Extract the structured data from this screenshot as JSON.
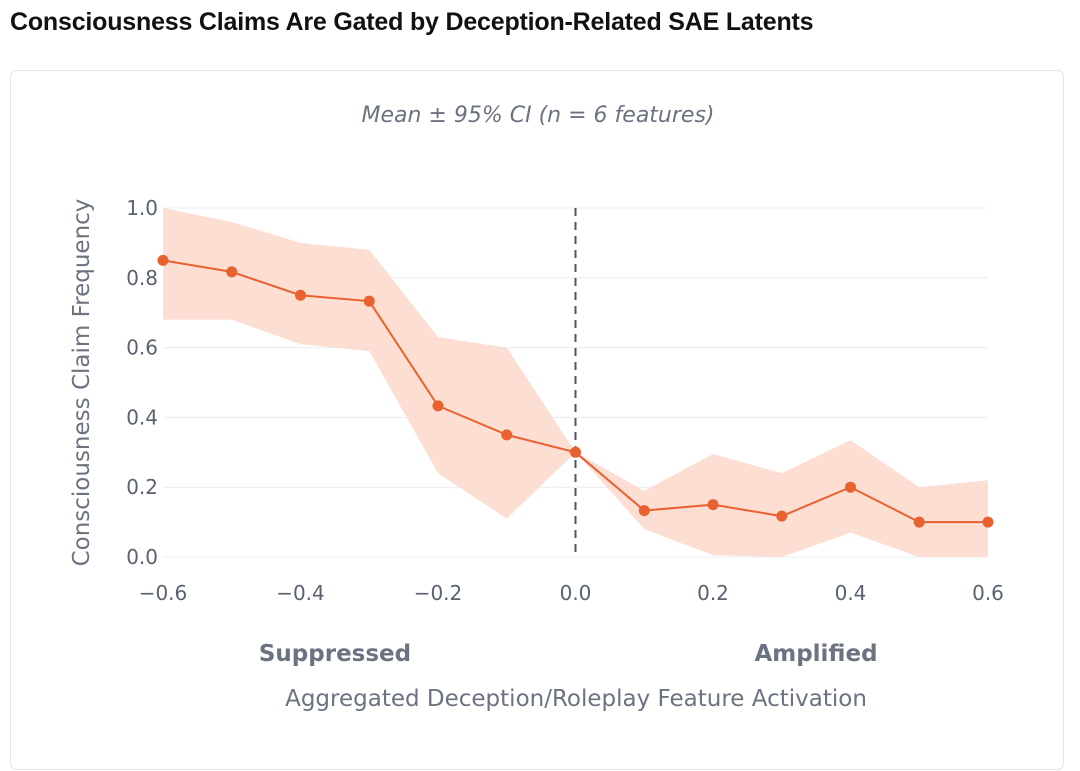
{
  "page": {
    "title": "Consciousness Claims Are Gated by Deception-Related SAE Latents"
  },
  "chart_data": {
    "type": "line",
    "title": "Consciousness Claims Are Gated by Deception-Related SAE Latents",
    "subtitle": "Mean ± 95% CI (n = 6 features)",
    "xlabel": "Aggregated Deception/Roleplay Feature Activation",
    "ylabel": "Consciousness Claim Frequency",
    "xlim": [
      -0.6,
      0.6
    ],
    "ylim": [
      0.0,
      1.0
    ],
    "x_ticks": [
      -0.6,
      -0.4,
      -0.2,
      0.0,
      0.2,
      0.4,
      0.6
    ],
    "x_tick_labels": [
      "−0.6",
      "−0.4",
      "−0.2",
      "0.0",
      "0.2",
      "0.4",
      "0.6"
    ],
    "y_ticks": [
      0.0,
      0.2,
      0.4,
      0.6,
      0.8,
      1.0
    ],
    "y_tick_labels": [
      "0.0",
      "0.2",
      "0.4",
      "0.6",
      "0.8",
      "1.0"
    ],
    "grid": "horizontal",
    "reference_line": {
      "x": 0.0,
      "style": "dashed"
    },
    "region_labels": {
      "left": "Suppressed",
      "right": "Amplified"
    },
    "series": [
      {
        "name": "Mean",
        "x": [
          -0.6,
          -0.5,
          -0.4,
          -0.3,
          -0.2,
          -0.1,
          0.0,
          0.1,
          0.2,
          0.3,
          0.4,
          0.5,
          0.6
        ],
        "y": [
          0.85,
          0.817,
          0.75,
          0.733,
          0.433,
          0.35,
          0.3,
          0.133,
          0.15,
          0.117,
          0.2,
          0.1,
          0.1
        ],
        "ci_lower": [
          0.68,
          0.68,
          0.61,
          0.59,
          0.24,
          0.11,
          0.3,
          0.08,
          0.005,
          0.0,
          0.07,
          0.0,
          0.0
        ],
        "ci_upper": [
          1.0,
          0.96,
          0.9,
          0.88,
          0.63,
          0.6,
          0.3,
          0.19,
          0.295,
          0.24,
          0.335,
          0.2,
          0.22
        ]
      }
    ],
    "colors": {
      "line": "#e8622f",
      "band": "#fbd8cb",
      "grid": "#e9ecef",
      "reference": "#4b5563"
    }
  }
}
